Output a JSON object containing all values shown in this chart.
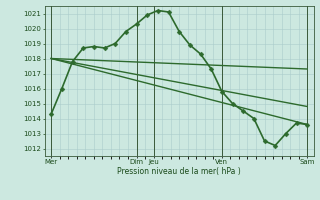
{
  "background_color": "#cce8e0",
  "grid_color": "#aacccc",
  "line_color": "#2d6a2d",
  "xlabel": "Pression niveau de la mer( hPa )",
  "ylim": [
    1011.5,
    1021.5
  ],
  "yticks": [
    1012,
    1013,
    1014,
    1015,
    1016,
    1017,
    1018,
    1019,
    1020,
    1021
  ],
  "series": [
    {
      "x": [
        0,
        0.5,
        1.0,
        1.5,
        2.0,
        2.5,
        3.0,
        3.5,
        4.0,
        4.5,
        5.0,
        5.5,
        6.0,
        6.5,
        7.0,
        7.5,
        8.0,
        8.5,
        9.0,
        9.5,
        10.0,
        10.5,
        11.0,
        11.5,
        12.0
      ],
      "y": [
        1014.3,
        1016.0,
        1017.8,
        1018.7,
        1018.8,
        1018.7,
        1019.0,
        1019.8,
        1020.3,
        1020.9,
        1021.2,
        1021.1,
        1019.8,
        1018.9,
        1018.3,
        1017.3,
        1015.8,
        1015.0,
        1014.5,
        1014.0,
        1012.5,
        1012.2,
        1013.0,
        1013.7,
        1013.6
      ],
      "marker": "D",
      "lw": 1.2,
      "ms": 2.5
    },
    {
      "x": [
        0,
        12
      ],
      "y": [
        1018.0,
        1017.3
      ],
      "marker": "",
      "lw": 1.0,
      "ms": 0
    },
    {
      "x": [
        0,
        12
      ],
      "y": [
        1018.0,
        1014.8
      ],
      "marker": "",
      "lw": 1.0,
      "ms": 0
    },
    {
      "x": [
        0,
        12
      ],
      "y": [
        1018.0,
        1013.6
      ],
      "marker": "",
      "lw": 1.0,
      "ms": 0
    }
  ],
  "vlines_x": [
    0,
    4.0,
    4.8,
    8.0,
    12.0
  ],
  "xtick_positions": [
    0,
    4.0,
    4.8,
    8.0,
    12.0
  ],
  "xtick_labels": [
    "Mer",
    "Dim",
    "Jeu",
    "Ven",
    "Sam"
  ],
  "xlim": [
    -0.3,
    12.3
  ]
}
